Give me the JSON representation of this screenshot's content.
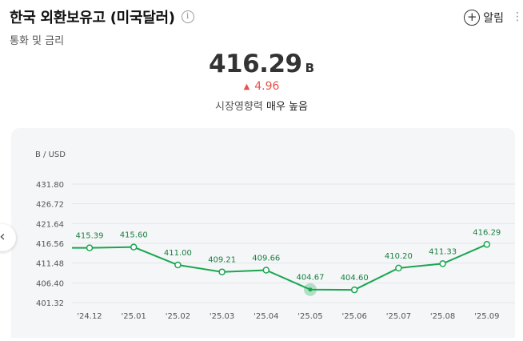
{
  "header": {
    "title": "한국 외환보유고 (미국달러)",
    "info_icon": "i",
    "subtitle": "통화 및 금리",
    "alert_label": "알림",
    "more_icon": "⋮"
  },
  "summary": {
    "value": "416.29",
    "unit": "B",
    "change": "4.96",
    "change_direction": "up",
    "impact_label": "시장영향력",
    "impact_value": "매우 높음"
  },
  "colors": {
    "line": "#1aa64f",
    "up": "#e5534b",
    "panel": "#f4f6f8"
  },
  "chart_data": {
    "type": "line",
    "ylabel": "B / USD",
    "categories": [
      "'24.12",
      "'25.01",
      "'25.02",
      "'25.03",
      "'25.04",
      "'25.05",
      "'25.06",
      "'25.07",
      "'25.08",
      "'25.09"
    ],
    "values": [
      415.39,
      415.6,
      411.0,
      409.21,
      409.66,
      404.67,
      404.6,
      410.2,
      411.33,
      416.29
    ],
    "data_labels": [
      "415.39",
      "415.60",
      "411.00",
      "409.21",
      "409.66",
      "404.67",
      "404.60",
      "410.20",
      "411.33",
      "416.29"
    ],
    "yticks": [
      401.32,
      406.4,
      411.48,
      416.56,
      421.64,
      426.72,
      431.8
    ],
    "ytick_labels": [
      "401.32",
      "406.40",
      "411.48",
      "416.56",
      "421.64",
      "426.72",
      "431.80"
    ],
    "ylim": [
      401.32,
      431.8
    ],
    "highlight_index": 5,
    "grid": true
  }
}
